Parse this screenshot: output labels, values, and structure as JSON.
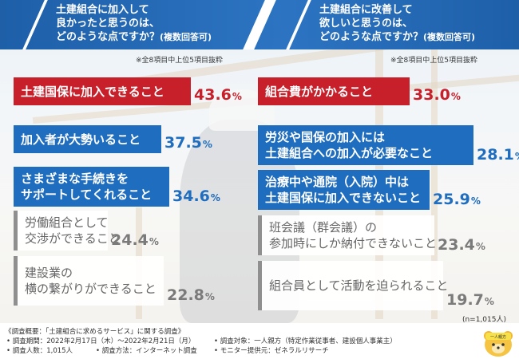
{
  "left_panel": {
    "title_lines": [
      "土建組合に加入して",
      "良かったと思うのは、"
    ],
    "title_last": "どのような点ですか？",
    "title_suffix": "(複数回答可)",
    "note": "※全8項目中上位5項目抜粋"
  },
  "right_panel": {
    "title_lines": [
      "土建組合に改善して",
      "欲しいと思うのは、"
    ],
    "title_last": "どのような点ですか？",
    "title_suffix": "(複数回答可)",
    "note": "※全8項目中上位5項目抜粋"
  },
  "chart_data": [
    {
      "type": "bar",
      "title": "土建組合に加入して良かったと思うのは、どのような点ですか？(複数回答可)",
      "unit": "%",
      "categories": [
        "土建国保に加入できること",
        "加入者が大勢いること",
        "さまざまな手続きをサポートしてくれること",
        "労働組合として交渉ができること",
        "建設業の横の繋がりができること"
      ],
      "values": [
        43.6,
        37.5,
        34.6,
        24.4,
        22.8
      ],
      "labels": [
        [
          "土建国保に加入できること"
        ],
        [
          "加入者が大勢いること"
        ],
        [
          "さまざまな手続きを",
          "サポートしてくれること"
        ],
        [
          "労働組合として",
          "交渉ができること"
        ],
        [
          "建設業の",
          "横の繋がりができること"
        ]
      ],
      "value_labels": [
        "43.6",
        "37.5",
        "34.6",
        "24.4",
        "22.8"
      ],
      "colors": [
        "#c8202b",
        "#1f6dbf",
        "#1f6dbf",
        "#8f8f8f",
        "#8f8f8f"
      ]
    },
    {
      "type": "bar",
      "title": "土建組合に改善して欲しいと思うのは、どのような点ですか？(複数回答可)",
      "unit": "%",
      "categories": [
        "組合費がかかること",
        "労災や国保の加入には土建組合への加入が必要なこと",
        "治療中や通院(入院)中は土建国保に加入できないこと",
        "班会議(群会議)の参加時にしか納付できないこと",
        "組合員として活動を迫られること"
      ],
      "values": [
        33.0,
        28.1,
        25.9,
        23.4,
        19.7
      ],
      "labels": [
        [
          "組合費がかかること"
        ],
        [
          "労災や国保の加入には",
          "土建組合への加入が必要なこと"
        ],
        [
          "治療中や通院（入院）中は",
          "土建国保に加入できないこと"
        ],
        [
          "班会議（群会議）の",
          "参加時にしか納付できないこと"
        ],
        [
          "組合員として活動を迫られること"
        ]
      ],
      "value_labels": [
        "33.0",
        "28.1",
        "25.9",
        "23.4",
        "19.7"
      ],
      "colors": [
        "#c8202b",
        "#1f6dbf",
        "#1f6dbf",
        "#8f8f8f",
        "#8f8f8f"
      ]
    }
  ],
  "sample_note": "(n=1,015人)",
  "survey": {
    "overview": "《調査概要：「土建組合に求めるサービス」に関する調査》",
    "period": "• 調査期間：2022年2月17日（木）～2022年2月21日（月）",
    "count": "• 調査人数：1,015人",
    "method": "• 調査方法：インターネット調査",
    "target": "• 調査対象：一人親方（特定作業従事者、建設個人事業主）",
    "provider": "• モニター提供元：ゼネラルリサーチ"
  },
  "mascot": {
    "text": "一人親方",
    "icon": "bear-mascot-icon"
  }
}
